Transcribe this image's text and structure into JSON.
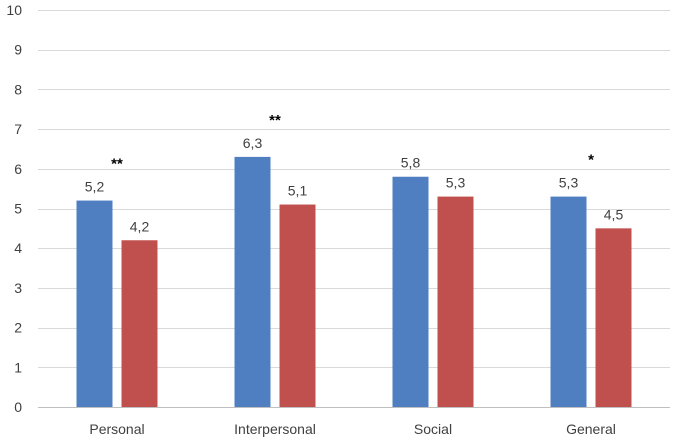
{
  "chart_data": {
    "type": "bar",
    "title": "",
    "xlabel": "",
    "ylabel": "",
    "ylim": [
      0,
      10
    ],
    "yticks": [
      "0",
      "1",
      "2",
      "3",
      "4",
      "5",
      "6",
      "7",
      "8",
      "9",
      "10"
    ],
    "grid": true,
    "legend": "none",
    "categories": [
      "Personal",
      "Interpersonal",
      "Social",
      "General"
    ],
    "series": [
      {
        "values": [
          5.2,
          6.3,
          5.8,
          5.3
        ],
        "labels": [
          "5,2",
          "6,3",
          "5,8",
          "5,3"
        ],
        "color": "#4f7fc1"
      },
      {
        "values": [
          4.2,
          5.1,
          5.3,
          4.5
        ],
        "labels": [
          "4,2",
          "5,1",
          "5,3",
          "4,5"
        ],
        "color": "#c0504d"
      }
    ],
    "significance": [
      "**",
      "**",
      "",
      "*"
    ]
  }
}
